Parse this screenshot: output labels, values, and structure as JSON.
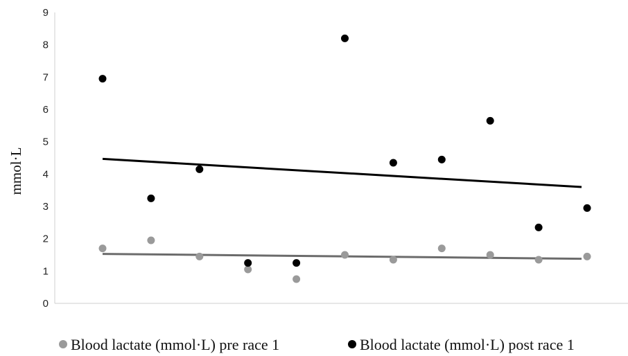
{
  "chart_data": {
    "type": "scatter",
    "ylabel": "mmol·L",
    "ylim": [
      0,
      9
    ],
    "yticks": [
      "0",
      "1",
      "2",
      "3",
      "4",
      "5",
      "6",
      "7",
      "8",
      "9"
    ],
    "x": [
      1,
      2,
      3,
      4,
      5,
      6,
      7,
      8,
      9,
      10,
      11
    ],
    "legend_position": "bottom",
    "series": [
      {
        "name": "Blood lactate (mmol·L) pre race 1",
        "color": "#9a9a9a",
        "trendline_color": "#6b6b6b",
        "values": [
          1.7,
          1.95,
          1.45,
          1.05,
          0.75,
          1.5,
          1.35,
          1.7,
          1.5,
          1.35,
          1.45
        ],
        "trendline": [
          1.53,
          1.38
        ]
      },
      {
        "name": "Blood lactate (mmol·L) post race 1",
        "color": "#000000",
        "trendline_color": "#000000",
        "values": [
          6.95,
          3.25,
          4.15,
          1.25,
          1.25,
          8.2,
          4.35,
          4.45,
          5.65,
          2.35,
          2.95
        ],
        "trendline": [
          4.47,
          3.6
        ]
      }
    ]
  }
}
